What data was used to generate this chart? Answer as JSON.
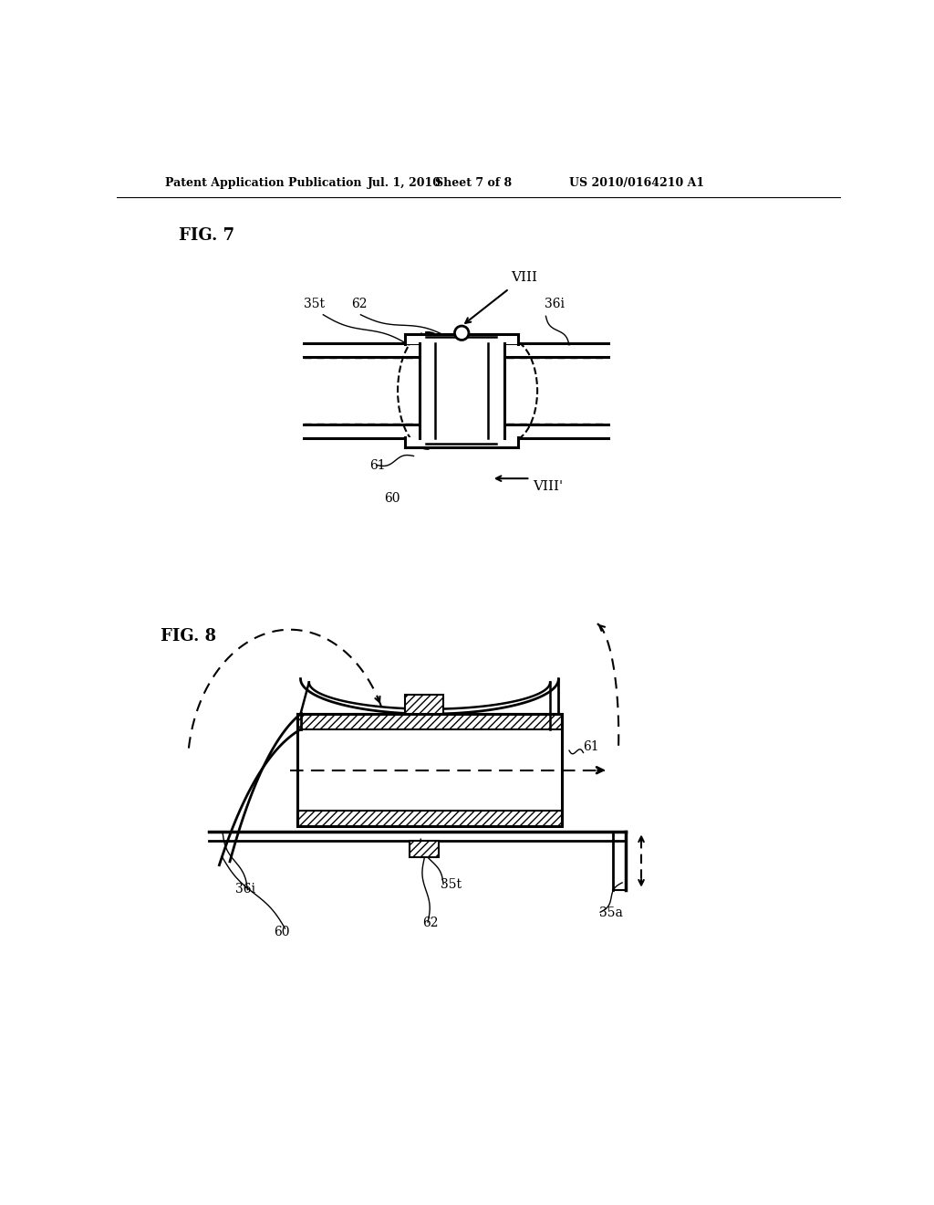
{
  "bg_color": "#ffffff",
  "header_text": "Patent Application Publication",
  "header_date": "Jul. 1, 2010",
  "header_sheet": "Sheet 7 of 8",
  "header_patent": "US 2010/0164210 A1",
  "fig7_label": "FIG. 7",
  "fig8_label": "FIG. 8",
  "text_color": "#000000",
  "line_color": "#000000"
}
